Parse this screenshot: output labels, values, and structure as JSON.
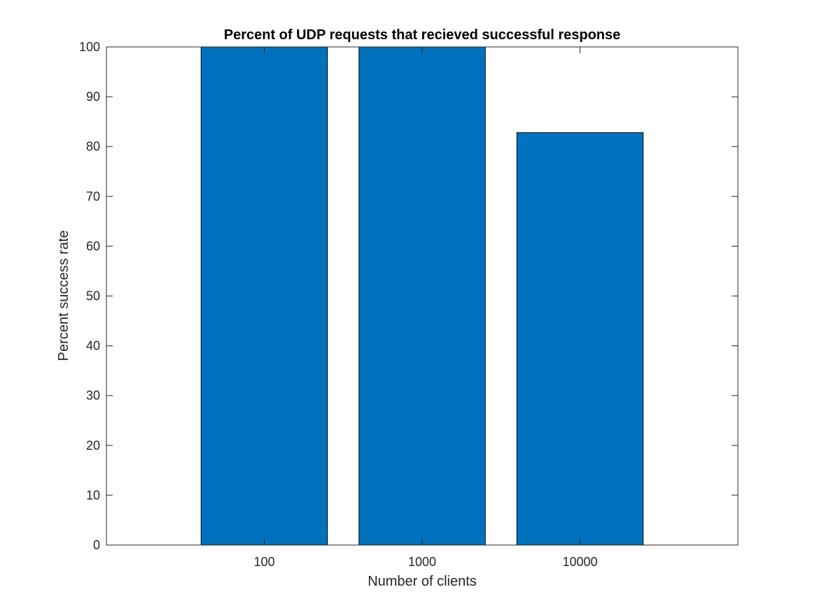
{
  "chart_data": {
    "type": "bar",
    "title": "Percent of UDP requests that recieved successful response",
    "xlabel": "Number of clients",
    "ylabel": "Percent success rate",
    "categories": [
      "100",
      "1000",
      "10000"
    ],
    "values": [
      100,
      100,
      82.8
    ],
    "ylim": [
      0,
      100
    ],
    "yticks": [
      0,
      10,
      20,
      30,
      40,
      50,
      60,
      70,
      80,
      90,
      100
    ],
    "grid": false,
    "bar_color": "#0072BD"
  }
}
